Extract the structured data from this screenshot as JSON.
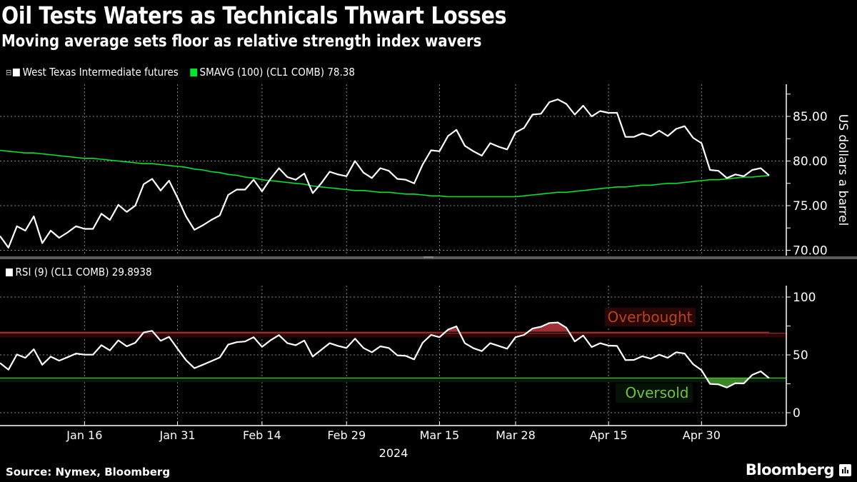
{
  "title": "Oil Tests Waters as Technicals Thwart Losses",
  "subtitle": "Moving average sets floor as relative strength index wavers",
  "source": "Source: Nymex, Bloomberg",
  "brand": "Bloomberg",
  "colors": {
    "price": "#ffffff",
    "sma": "#00e62e",
    "overbought_line": "#8a2a1e",
    "oversold_line": "#4fc23a",
    "overbought_text": "#b5451f",
    "oversold_text": "#6cc43a",
    "background": "#000000"
  },
  "chart_data": [
    {
      "type": "line",
      "legend": [
        {
          "label": "West Texas Intermediate futures",
          "color": "#ffffff",
          "icon": "collapse-box-icon"
        },
        {
          "label": "SMAVG (100) (CL1 COMB) 78.38",
          "color": "#00e62e"
        }
      ],
      "ylabel": "US dollars a barrel",
      "ylim": [
        69.5,
        88
      ],
      "yticks": [
        "70.00",
        "75.00",
        "80.00",
        "85.00"
      ],
      "grid": true,
      "xtick_labels": [
        {
          "label": "Jan 16",
          "date": "2024-01-16"
        },
        {
          "label": "Jan 31",
          "date": "2024-01-31"
        },
        {
          "label": "Feb 14",
          "date": "2024-02-14"
        },
        {
          "label": "Feb 29",
          "date": "2024-02-29"
        },
        {
          "label": "Mar 15",
          "date": "2024-03-15"
        },
        {
          "label": "Mar 28",
          "date": "2024-03-28"
        },
        {
          "label": "Apr 15",
          "date": "2024-04-15"
        },
        {
          "label": "Apr 30",
          "date": "2024-04-30"
        }
      ],
      "xaxis_year": "2024",
      "x": [
        "2023-12-29",
        "2024-01-02",
        "2024-01-03",
        "2024-01-04",
        "2024-01-05",
        "2024-01-08",
        "2024-01-09",
        "2024-01-10",
        "2024-01-11",
        "2024-01-12",
        "2024-01-16",
        "2024-01-17",
        "2024-01-18",
        "2024-01-19",
        "2024-01-22",
        "2024-01-23",
        "2024-01-24",
        "2024-01-25",
        "2024-01-26",
        "2024-01-29",
        "2024-01-30",
        "2024-01-31",
        "2024-02-01",
        "2024-02-02",
        "2024-02-05",
        "2024-02-06",
        "2024-02-07",
        "2024-02-08",
        "2024-02-09",
        "2024-02-12",
        "2024-02-13",
        "2024-02-14",
        "2024-02-15",
        "2024-02-16",
        "2024-02-20",
        "2024-02-21",
        "2024-02-22",
        "2024-02-23",
        "2024-02-26",
        "2024-02-27",
        "2024-02-28",
        "2024-02-29",
        "2024-03-01",
        "2024-03-04",
        "2024-03-05",
        "2024-03-06",
        "2024-03-07",
        "2024-03-08",
        "2024-03-11",
        "2024-03-12",
        "2024-03-13",
        "2024-03-14",
        "2024-03-15",
        "2024-03-18",
        "2024-03-19",
        "2024-03-20",
        "2024-03-21",
        "2024-03-22",
        "2024-03-25",
        "2024-03-26",
        "2024-03-27",
        "2024-03-28",
        "2024-04-01",
        "2024-04-02",
        "2024-04-03",
        "2024-04-04",
        "2024-04-05",
        "2024-04-08",
        "2024-04-09",
        "2024-04-10",
        "2024-04-11",
        "2024-04-12",
        "2024-04-15",
        "2024-04-16",
        "2024-04-17",
        "2024-04-18",
        "2024-04-19",
        "2024-04-22",
        "2024-04-23",
        "2024-04-24",
        "2024-04-25",
        "2024-04-26",
        "2024-04-29",
        "2024-04-30",
        "2024-05-01",
        "2024-05-02",
        "2024-05-03",
        "2024-05-06",
        "2024-05-07",
        "2024-05-08",
        "2024-05-09",
        "2024-05-10"
      ],
      "series": [
        {
          "name": "West Texas Intermediate futures",
          "color": "#ffffff",
          "values": [
            71.6,
            70.3,
            72.7,
            72.2,
            73.8,
            70.8,
            72.2,
            71.4,
            72.0,
            72.7,
            72.4,
            72.4,
            74.1,
            73.4,
            75.1,
            74.3,
            75.0,
            77.4,
            78.0,
            76.7,
            77.8,
            75.9,
            73.8,
            72.3,
            72.8,
            73.4,
            73.9,
            76.2,
            76.8,
            76.8,
            77.9,
            76.6,
            78.0,
            79.2,
            78.2,
            77.9,
            78.6,
            76.4,
            77.5,
            78.8,
            78.5,
            78.3,
            80.0,
            78.7,
            78.1,
            79.2,
            78.9,
            78.0,
            77.9,
            77.5,
            79.6,
            81.2,
            81.1,
            82.8,
            83.5,
            81.7,
            81.1,
            80.6,
            82.0,
            81.6,
            81.3,
            83.2,
            83.7,
            85.2,
            85.3,
            86.6,
            86.9,
            86.4,
            85.2,
            86.2,
            85.0,
            85.6,
            85.4,
            85.4,
            82.7,
            82.7,
            83.1,
            82.8,
            83.4,
            82.8,
            83.6,
            83.9,
            82.6,
            82.0,
            79.0,
            78.9,
            78.1,
            78.5,
            78.3,
            79.0,
            79.2,
            78.38
          ]
        },
        {
          "name": "SMAVG (100) (CL1 COMB)",
          "color": "#00e62e",
          "values": [
            81.2,
            81.1,
            81.0,
            80.9,
            80.9,
            80.8,
            80.7,
            80.6,
            80.5,
            80.4,
            80.3,
            80.3,
            80.2,
            80.1,
            80.0,
            79.9,
            79.8,
            79.7,
            79.7,
            79.6,
            79.5,
            79.4,
            79.3,
            79.1,
            79.0,
            78.8,
            78.7,
            78.5,
            78.4,
            78.2,
            78.1,
            77.9,
            77.8,
            77.7,
            77.6,
            77.5,
            77.4,
            77.2,
            77.1,
            77.0,
            76.9,
            76.8,
            76.7,
            76.7,
            76.6,
            76.5,
            76.5,
            76.4,
            76.3,
            76.3,
            76.2,
            76.1,
            76.1,
            76.0,
            76.0,
            76.0,
            76.0,
            76.0,
            76.0,
            76.0,
            76.0,
            76.0,
            76.1,
            76.2,
            76.3,
            76.4,
            76.5,
            76.5,
            76.6,
            76.7,
            76.8,
            76.9,
            77.0,
            77.1,
            77.1,
            77.2,
            77.3,
            77.3,
            77.4,
            77.5,
            77.5,
            77.6,
            77.7,
            77.8,
            77.9,
            77.9,
            78.0,
            78.1,
            78.2,
            78.2,
            78.3,
            78.38
          ]
        }
      ]
    },
    {
      "type": "line",
      "legend": [
        {
          "label": "RSI (9) (CL1 COMB) 29.8938",
          "color": "#ffffff"
        }
      ],
      "ylim": [
        -5,
        105
      ],
      "yticks": [
        "0",
        "50",
        "100"
      ],
      "grid": true,
      "thresholds": [
        {
          "label": "Overbought",
          "value": 70,
          "color": "#8a2a1e"
        },
        {
          "label": "Oversold",
          "value": 30,
          "color": "#4fc23a"
        }
      ],
      "series": [
        {
          "name": "RSI (9) (CL1 COMB)",
          "color": "#ffffff",
          "values": [
            43,
            37.2,
            50.4,
            47.5,
            54.9,
            41.5,
            48.5,
            45,
            48,
            51.2,
            50.2,
            50.2,
            58.4,
            53.9,
            62.6,
            57.4,
            60.5,
            69.4,
            70.8,
            62.2,
            65.6,
            55.4,
            45.5,
            38.5,
            41.5,
            44.6,
            47.8,
            58.9,
            61,
            61.6,
            65.3,
            57,
            62.6,
            67.1,
            60.1,
            58.4,
            62.4,
            48.6,
            54.3,
            60.1,
            57.8,
            56,
            64,
            56,
            52.3,
            57.4,
            56,
            49.6,
            49.2,
            46.1,
            60.5,
            67.3,
            65.3,
            71.8,
            74.7,
            60.1,
            55.8,
            53.3,
            60.1,
            57.8,
            55.4,
            65.3,
            67.3,
            72.8,
            74.3,
            77.6,
            78,
            73.5,
            61.6,
            66.7,
            56.8,
            60.1,
            58,
            57.8,
            45.5,
            45.7,
            48.8,
            46.7,
            50.2,
            47.5,
            52.3,
            51.2,
            42,
            36.8,
            24.9,
            24.5,
            21.8,
            25.5,
            25.3,
            32.7,
            35.8,
            29.8938
          ]
        }
      ]
    }
  ]
}
